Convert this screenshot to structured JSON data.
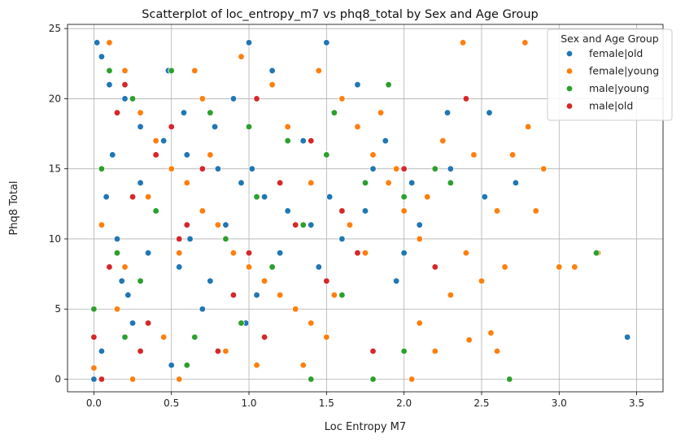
{
  "chart_data": {
    "type": "scatter",
    "title": "Scatterplot of loc_entropy_m7 vs phq8_total by Sex and Age Group",
    "xlabel": "Loc Entropy M7",
    "ylabel": "Phq8 Total",
    "xlim": [
      -0.17,
      3.67
    ],
    "ylim": [
      -0.9,
      25.3
    ],
    "x_ticks": [
      "0.0",
      "0.5",
      "1.0",
      "1.5",
      "2.0",
      "2.5",
      "3.0",
      "3.5"
    ],
    "y_ticks": [
      "0",
      "5",
      "10",
      "15",
      "20",
      "25"
    ],
    "grid": true,
    "legend": {
      "title": "Sex and Age Group",
      "placement": "top-right"
    },
    "series": [
      {
        "name": "female|old",
        "color": "#1f77b4",
        "points": [
          [
            0.02,
            24
          ],
          [
            0.05,
            23
          ],
          [
            0.1,
            21
          ],
          [
            0.2,
            20
          ],
          [
            0.3,
            18
          ],
          [
            0.45,
            17
          ],
          [
            0.6,
            16
          ],
          [
            0.8,
            15
          ],
          [
            0.95,
            14
          ],
          [
            1.1,
            13
          ],
          [
            1.25,
            12
          ],
          [
            1.4,
            11
          ],
          [
            0.15,
            10
          ],
          [
            0.35,
            9
          ],
          [
            0.55,
            8
          ],
          [
            0.75,
            7
          ],
          [
            1.05,
            6
          ],
          [
            1.3,
            5
          ],
          [
            0.25,
            4
          ],
          [
            0.65,
            3
          ],
          [
            0.05,
            2
          ],
          [
            0.5,
            1
          ],
          [
            0.0,
            0
          ],
          [
            1.8,
            15
          ],
          [
            1.6,
            10
          ],
          [
            2.05,
            14
          ],
          [
            2.28,
            19
          ],
          [
            2.55,
            19
          ],
          [
            2.72,
            14
          ],
          [
            2.52,
            13
          ],
          [
            2.3,
            15
          ],
          [
            3.44,
            3
          ],
          [
            0.9,
            20
          ],
          [
            1.15,
            22
          ],
          [
            1.5,
            24
          ],
          [
            1.7,
            21
          ],
          [
            0.4,
            12
          ],
          [
            0.85,
            11
          ],
          [
            1.2,
            9
          ],
          [
            1.45,
            8
          ],
          [
            1.95,
            7
          ],
          [
            2.1,
            11
          ],
          [
            0.7,
            5
          ],
          [
            1.0,
            24
          ],
          [
            0.12,
            16
          ],
          [
            0.3,
            14
          ],
          [
            0.58,
            19
          ],
          [
            1.35,
            17
          ],
          [
            1.75,
            12
          ],
          [
            0.22,
            6
          ],
          [
            0.48,
            22
          ],
          [
            0.98,
            4
          ],
          [
            0.08,
            13
          ],
          [
            0.78,
            18
          ],
          [
            1.52,
            13
          ],
          [
            2.0,
            9
          ],
          [
            1.88,
            17
          ],
          [
            0.62,
            10
          ],
          [
            0.18,
            7
          ],
          [
            1.02,
            15
          ]
        ]
      },
      {
        "name": "female|young",
        "color": "#ff7f0e",
        "points": [
          [
            0.0,
            0.8
          ],
          [
            0.1,
            24
          ],
          [
            0.2,
            22
          ],
          [
            0.3,
            19
          ],
          [
            0.4,
            17
          ],
          [
            0.5,
            15
          ],
          [
            0.6,
            14
          ],
          [
            0.7,
            12
          ],
          [
            0.8,
            11
          ],
          [
            0.9,
            9
          ],
          [
            1.0,
            8
          ],
          [
            1.1,
            7
          ],
          [
            1.2,
            6
          ],
          [
            1.3,
            5
          ],
          [
            1.4,
            4
          ],
          [
            1.5,
            3
          ],
          [
            1.6,
            20
          ],
          [
            1.7,
            18
          ],
          [
            1.8,
            16
          ],
          [
            1.9,
            14
          ],
          [
            2.0,
            12
          ],
          [
            2.1,
            10
          ],
          [
            2.2,
            8
          ],
          [
            2.3,
            6
          ],
          [
            2.4,
            9
          ],
          [
            2.5,
            7
          ],
          [
            2.6,
            12
          ],
          [
            2.7,
            16
          ],
          [
            2.8,
            18
          ],
          [
            2.9,
            15
          ],
          [
            3.0,
            8
          ],
          [
            3.1,
            8
          ],
          [
            3.25,
            9
          ],
          [
            2.78,
            24
          ],
          [
            2.38,
            24
          ],
          [
            2.42,
            2.8
          ],
          [
            2.56,
            3.3
          ],
          [
            2.6,
            2
          ],
          [
            2.65,
            8
          ],
          [
            2.85,
            12
          ],
          [
            2.05,
            0
          ],
          [
            2.2,
            2
          ],
          [
            1.35,
            1
          ],
          [
            0.55,
            0
          ],
          [
            0.25,
            0
          ],
          [
            0.65,
            22
          ],
          [
            1.15,
            21
          ],
          [
            1.85,
            19
          ],
          [
            0.95,
            23
          ],
          [
            1.45,
            22
          ],
          [
            0.35,
            13
          ],
          [
            0.75,
            16
          ],
          [
            1.25,
            18
          ],
          [
            1.65,
            11
          ],
          [
            2.15,
            13
          ],
          [
            0.15,
            5
          ],
          [
            0.45,
            3
          ],
          [
            0.85,
            2
          ],
          [
            1.05,
            1
          ],
          [
            0.05,
            11
          ],
          [
            0.2,
            8
          ],
          [
            0.55,
            9
          ],
          [
            1.4,
            14
          ],
          [
            1.95,
            15
          ],
          [
            2.25,
            17
          ],
          [
            2.45,
            16
          ],
          [
            1.55,
            6
          ],
          [
            2.1,
            4
          ],
          [
            0.7,
            20
          ],
          [
            1.75,
            9
          ]
        ]
      },
      {
        "name": "male|young",
        "color": "#2ca02c",
        "points": [
          [
            0.0,
            5
          ],
          [
            0.1,
            22
          ],
          [
            0.25,
            20
          ],
          [
            0.5,
            22
          ],
          [
            0.75,
            19
          ],
          [
            1.0,
            18
          ],
          [
            1.25,
            17
          ],
          [
            1.5,
            16
          ],
          [
            1.75,
            14
          ],
          [
            2.0,
            13
          ],
          [
            2.2,
            15
          ],
          [
            2.3,
            14
          ],
          [
            0.2,
            3
          ],
          [
            0.6,
            1
          ],
          [
            1.4,
            0
          ],
          [
            1.8,
            0
          ],
          [
            2.0,
            2
          ],
          [
            2.68,
            0
          ],
          [
            3.24,
            9
          ],
          [
            0.4,
            12
          ],
          [
            0.85,
            10
          ],
          [
            1.15,
            8
          ],
          [
            1.6,
            6
          ],
          [
            0.05,
            15
          ],
          [
            0.3,
            7
          ],
          [
            0.95,
            4
          ],
          [
            1.35,
            11
          ],
          [
            0.65,
            3
          ],
          [
            1.55,
            19
          ],
          [
            1.9,
            21
          ],
          [
            0.15,
            9
          ],
          [
            1.05,
            13
          ]
        ]
      },
      {
        "name": "male|old",
        "color": "#d62728",
        "points": [
          [
            0.0,
            3
          ],
          [
            0.05,
            0
          ],
          [
            0.2,
            21
          ],
          [
            0.4,
            16
          ],
          [
            0.6,
            11
          ],
          [
            0.8,
            2
          ],
          [
            1.0,
            9
          ],
          [
            1.2,
            14
          ],
          [
            1.4,
            17
          ],
          [
            1.6,
            12
          ],
          [
            1.8,
            2
          ],
          [
            2.0,
            15
          ],
          [
            2.2,
            8
          ],
          [
            2.4,
            20
          ],
          [
            0.15,
            19
          ],
          [
            0.3,
            2
          ],
          [
            0.55,
            10
          ],
          [
            0.7,
            15
          ],
          [
            0.9,
            6
          ],
          [
            1.1,
            3
          ],
          [
            1.3,
            11
          ],
          [
            1.5,
            7
          ],
          [
            0.25,
            13
          ],
          [
            0.5,
            18
          ],
          [
            1.05,
            20
          ],
          [
            1.7,
            9
          ],
          [
            0.1,
            8
          ],
          [
            0.35,
            4
          ]
        ]
      }
    ]
  }
}
